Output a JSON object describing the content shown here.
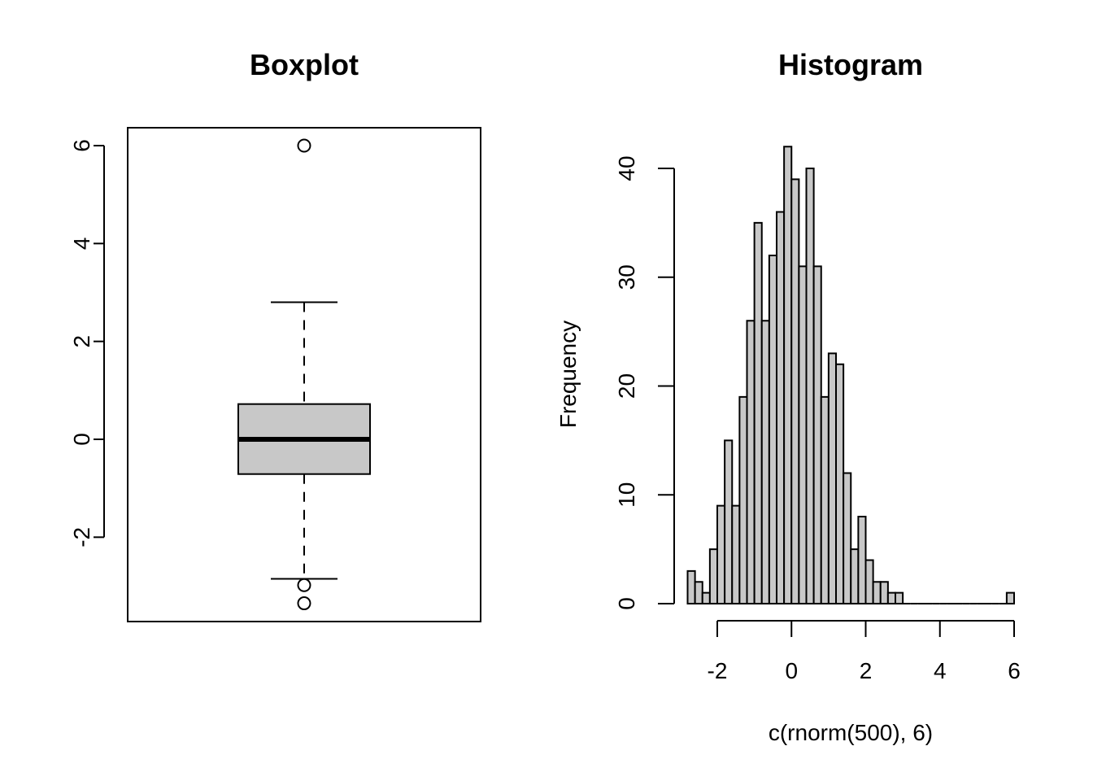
{
  "chart_data": [
    {
      "type": "box",
      "title": "Boxplot",
      "xlabel": "",
      "ylabel": "",
      "ylim": [
        -3.7,
        6.4
      ],
      "yticks": [
        -2,
        0,
        2,
        4,
        6
      ],
      "stats": {
        "min": -2.85,
        "q1": -0.71,
        "median": 0.0,
        "q3": 0.72,
        "max": 2.8
      },
      "outliers": [
        6.0,
        -2.98,
        -3.35
      ],
      "box_fill": "#c8c8c8"
    },
    {
      "type": "bar",
      "title": "Histogram",
      "xlabel": "c(rnorm(500), 6)",
      "ylabel": "Frequency",
      "xlim": [
        -3,
        6
      ],
      "ylim": [
        0,
        42
      ],
      "xticks": [
        -2,
        0,
        2,
        4,
        6
      ],
      "yticks": [
        0,
        10,
        20,
        30,
        40
      ],
      "bin_width": 0.2,
      "bin_start": -2.8,
      "values": [
        3,
        2,
        1,
        5,
        9,
        15,
        9,
        19,
        26,
        35,
        26,
        32,
        36,
        42,
        39,
        31,
        40,
        31,
        19,
        23,
        22,
        12,
        5,
        8,
        4,
        2,
        2,
        1,
        1,
        0,
        0,
        0,
        0,
        0,
        0,
        0,
        0,
        0,
        0,
        0,
        0,
        0,
        0,
        1
      ],
      "bar_fill": "#c8c8c8"
    }
  ]
}
